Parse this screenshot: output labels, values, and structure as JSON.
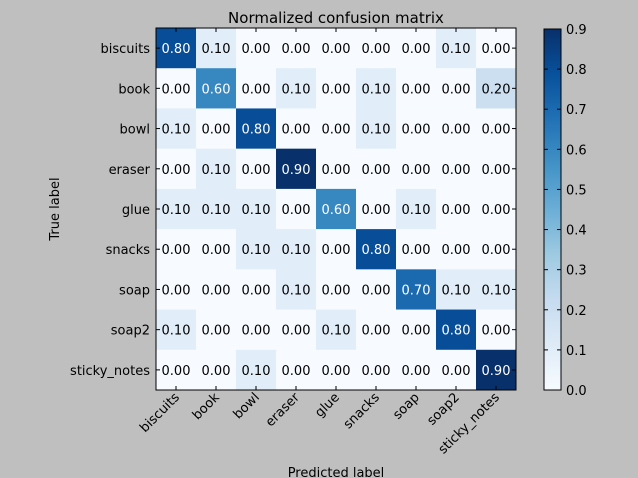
{
  "chart_data": {
    "type": "heatmap",
    "title": "Normalized confusion matrix",
    "xlabel": "Predicted label",
    "ylabel": "True label",
    "x_categories": [
      "biscuits",
      "book",
      "bowl",
      "eraser",
      "glue",
      "snacks",
      "soap",
      "soap2",
      "sticky_notes"
    ],
    "y_categories": [
      "biscuits",
      "book",
      "bowl",
      "eraser",
      "glue",
      "snacks",
      "soap",
      "soap2",
      "sticky_notes"
    ],
    "values": [
      [
        0.8,
        0.1,
        0.0,
        0.0,
        0.0,
        0.0,
        0.0,
        0.1,
        0.0
      ],
      [
        0.0,
        0.6,
        0.0,
        0.1,
        0.0,
        0.1,
        0.0,
        0.0,
        0.2
      ],
      [
        0.1,
        0.0,
        0.8,
        0.0,
        0.0,
        0.1,
        0.0,
        0.0,
        0.0
      ],
      [
        0.0,
        0.1,
        0.0,
        0.9,
        0.0,
        0.0,
        0.0,
        0.0,
        0.0
      ],
      [
        0.1,
        0.1,
        0.1,
        0.0,
        0.6,
        0.0,
        0.1,
        0.0,
        0.0
      ],
      [
        0.0,
        0.0,
        0.1,
        0.1,
        0.0,
        0.8,
        0.0,
        0.0,
        0.0
      ],
      [
        0.0,
        0.0,
        0.0,
        0.1,
        0.0,
        0.0,
        0.7,
        0.1,
        0.1
      ],
      [
        0.1,
        0.0,
        0.0,
        0.0,
        0.1,
        0.0,
        0.0,
        0.8,
        0.0
      ],
      [
        0.0,
        0.0,
        0.1,
        0.0,
        0.0,
        0.0,
        0.0,
        0.0,
        0.9
      ]
    ],
    "colorbar": {
      "colormap": "Blues",
      "range": [
        0.0,
        0.9
      ],
      "ticks": [
        "0.0",
        "0.1",
        "0.2",
        "0.3",
        "0.4",
        "0.5",
        "0.6",
        "0.7",
        "0.8",
        "0.9"
      ]
    },
    "grid": false,
    "legend": "none"
  },
  "colors": {
    "background": "#bfbfbf",
    "cmap_low": "#f7fbff",
    "cmap_high": "#08306b",
    "text_dark": "#000000",
    "text_light": "#ffffff"
  }
}
